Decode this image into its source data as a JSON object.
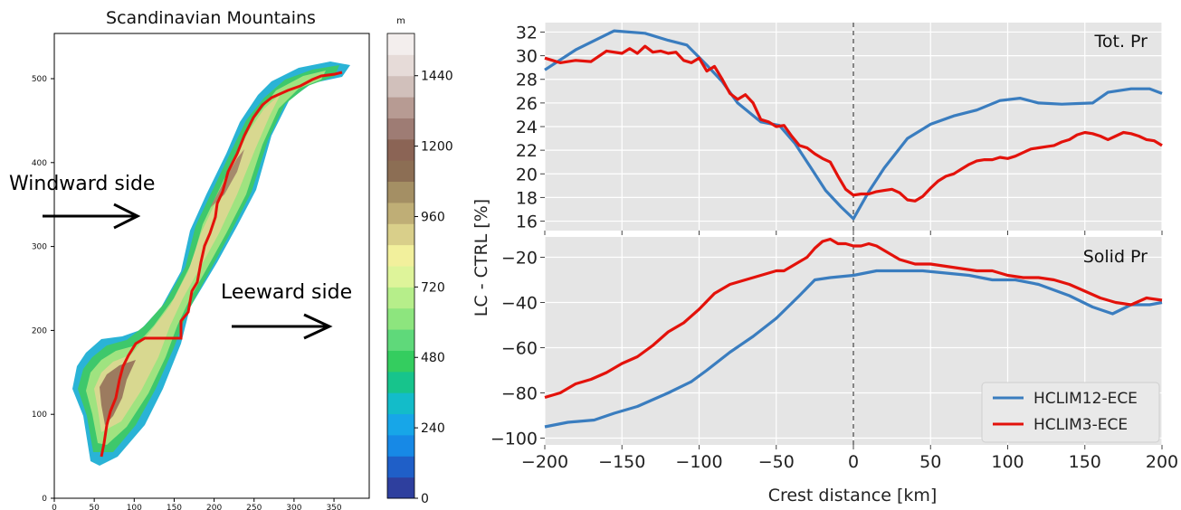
{
  "figure": {
    "left_panel": {
      "title": "Scandinavian Mountains",
      "colorbar_unit": "m",
      "colorbar_ticks": [
        0,
        240,
        480,
        720,
        960,
        1200,
        1440
      ],
      "colorbar_levels": [
        "#2e3f9e",
        "#1f5fc8",
        "#1789e6",
        "#17a6e8",
        "#13bcc9",
        "#17c48c",
        "#34cd5f",
        "#5fd97a",
        "#8de57e",
        "#b6ee8a",
        "#def49a",
        "#f2f09c",
        "#d9cf8a",
        "#bfae76",
        "#a48f64",
        "#8c6e54",
        "#8b6455",
        "#9e7c74",
        "#b79b93",
        "#d1c0bb",
        "#e6dbd8",
        "#f3eeed"
      ],
      "x_ticks": [
        0,
        50,
        100,
        150,
        200,
        250,
        300,
        350
      ],
      "y_ticks": [
        0,
        100,
        200,
        300,
        400,
        500
      ],
      "windward_label": "Windward side",
      "leeward_label": "Leeward side",
      "crest_color": "#e3120b"
    },
    "right_panel": {
      "ylabel": "LC - CTRL [%]",
      "xlabel": "Crest distance [km]",
      "x_ticks": [
        -200,
        -150,
        -100,
        -50,
        0,
        50,
        100,
        150,
        200
      ],
      "legend": [
        "HCLIM12-ECE",
        "HCLIM3-ECE"
      ]
    }
  },
  "chart_data": [
    {
      "type": "line",
      "title": "Tot. Pr",
      "xlabel": "Crest distance [km]",
      "ylabel": "LC - CTRL [%]",
      "xlim": [
        -200,
        200
      ],
      "ylim": [
        15.2,
        32.8
      ],
      "y_ticks": [
        16,
        18,
        20,
        22,
        24,
        26,
        28,
        30,
        32
      ],
      "grid": true,
      "series": [
        {
          "name": "HCLIM12-ECE",
          "color": "#3a7dbf",
          "x": [
            -200,
            -180,
            -155,
            -135,
            -120,
            -108,
            -95,
            -85,
            -75,
            -60,
            -48,
            -38,
            -28,
            -18,
            -8,
            0,
            10,
            20,
            35,
            50,
            65,
            80,
            95,
            108,
            120,
            135,
            155,
            165,
            180,
            192,
            200
          ],
          "y": [
            28.8,
            30.5,
            32.1,
            31.9,
            31.3,
            30.9,
            29.2,
            27.8,
            26.0,
            24.4,
            24.1,
            22.6,
            20.6,
            18.6,
            17.2,
            16.2,
            18.5,
            20.5,
            23.0,
            24.2,
            24.9,
            25.4,
            26.2,
            26.4,
            26.0,
            25.9,
            26.0,
            26.9,
            27.2,
            27.2,
            26.8
          ]
        },
        {
          "name": "HCLIM3-ECE",
          "color": "#e3120b",
          "x": [
            -200,
            -190,
            -180,
            -170,
            -160,
            -150,
            -145,
            -140,
            -135,
            -130,
            -125,
            -120,
            -115,
            -110,
            -105,
            -100,
            -95,
            -90,
            -85,
            -80,
            -75,
            -70,
            -65,
            -60,
            -55,
            -50,
            -45,
            -40,
            -35,
            -30,
            -25,
            -20,
            -15,
            -10,
            -5,
            0,
            5,
            10,
            15,
            20,
            25,
            30,
            35,
            40,
            45,
            50,
            55,
            60,
            65,
            70,
            75,
            80,
            85,
            90,
            95,
            100,
            105,
            110,
            115,
            120,
            125,
            130,
            135,
            140,
            145,
            150,
            155,
            160,
            165,
            170,
            175,
            180,
            185,
            190,
            195,
            200
          ],
          "y": [
            29.8,
            29.4,
            29.6,
            29.5,
            30.4,
            30.2,
            30.6,
            30.2,
            30.8,
            30.3,
            30.4,
            30.2,
            30.3,
            29.6,
            29.4,
            29.8,
            28.7,
            29.1,
            28.0,
            26.8,
            26.3,
            26.7,
            26.0,
            24.6,
            24.4,
            24.0,
            24.1,
            23.2,
            22.4,
            22.2,
            21.7,
            21.3,
            21.0,
            19.8,
            18.7,
            18.2,
            18.3,
            18.3,
            18.5,
            18.6,
            18.7,
            18.4,
            17.8,
            17.7,
            18.1,
            18.8,
            19.4,
            19.8,
            20.0,
            20.4,
            20.8,
            21.1,
            21.2,
            21.2,
            21.4,
            21.3,
            21.5,
            21.8,
            22.1,
            22.2,
            22.3,
            22.4,
            22.7,
            22.9,
            23.3,
            23.5,
            23.4,
            23.2,
            22.9,
            23.2,
            23.5,
            23.4,
            23.2,
            22.9,
            22.8,
            22.4
          ]
        }
      ]
    },
    {
      "type": "line",
      "title": "Solid Pr",
      "xlabel": "Crest distance [km]",
      "ylabel": "LC - CTRL [%]",
      "xlim": [
        -200,
        200
      ],
      "ylim": [
        -103,
        -11
      ],
      "y_ticks": [
        -100,
        -80,
        -60,
        -40,
        -20
      ],
      "grid": true,
      "legend_position": "lower-right",
      "series": [
        {
          "name": "HCLIM12-ECE",
          "color": "#3a7dbf",
          "x": [
            -200,
            -185,
            -168,
            -155,
            -140,
            -120,
            -105,
            -95,
            -80,
            -65,
            -50,
            -35,
            -25,
            -15,
            0,
            15,
            30,
            45,
            60,
            75,
            90,
            105,
            120,
            140,
            155,
            168,
            180,
            192,
            200
          ],
          "y": [
            -95,
            -93,
            -92,
            -89,
            -86,
            -80,
            -75,
            -70,
            -62,
            -55,
            -47,
            -37,
            -30,
            -29,
            -28,
            -26,
            -26,
            -26,
            -27,
            -28,
            -30,
            -30,
            -32,
            -37,
            -42,
            -45,
            -41,
            -41,
            -40
          ]
        },
        {
          "name": "HCLIM3-ECE",
          "color": "#e3120b",
          "x": [
            -200,
            -190,
            -180,
            -170,
            -160,
            -150,
            -140,
            -130,
            -120,
            -110,
            -100,
            -90,
            -80,
            -70,
            -60,
            -50,
            -45,
            -40,
            -35,
            -30,
            -25,
            -20,
            -15,
            -10,
            -5,
            0,
            5,
            10,
            15,
            20,
            25,
            30,
            40,
            50,
            60,
            70,
            80,
            90,
            100,
            110,
            120,
            130,
            140,
            150,
            160,
            170,
            180,
            190,
            200
          ],
          "y": [
            -82,
            -80,
            -76,
            -74,
            -71,
            -67,
            -64,
            -59,
            -53,
            -49,
            -43,
            -36,
            -32,
            -30,
            -28,
            -26,
            -26,
            -24,
            -22,
            -20,
            -16,
            -13,
            -12,
            -14,
            -14,
            -15,
            -15,
            -14,
            -15,
            -17,
            -19,
            -21,
            -23,
            -23,
            -24,
            -25,
            -26,
            -26,
            -28,
            -29,
            -29,
            -30,
            -32,
            -35,
            -38,
            -40,
            -41,
            -38,
            -39
          ]
        }
      ]
    }
  ]
}
